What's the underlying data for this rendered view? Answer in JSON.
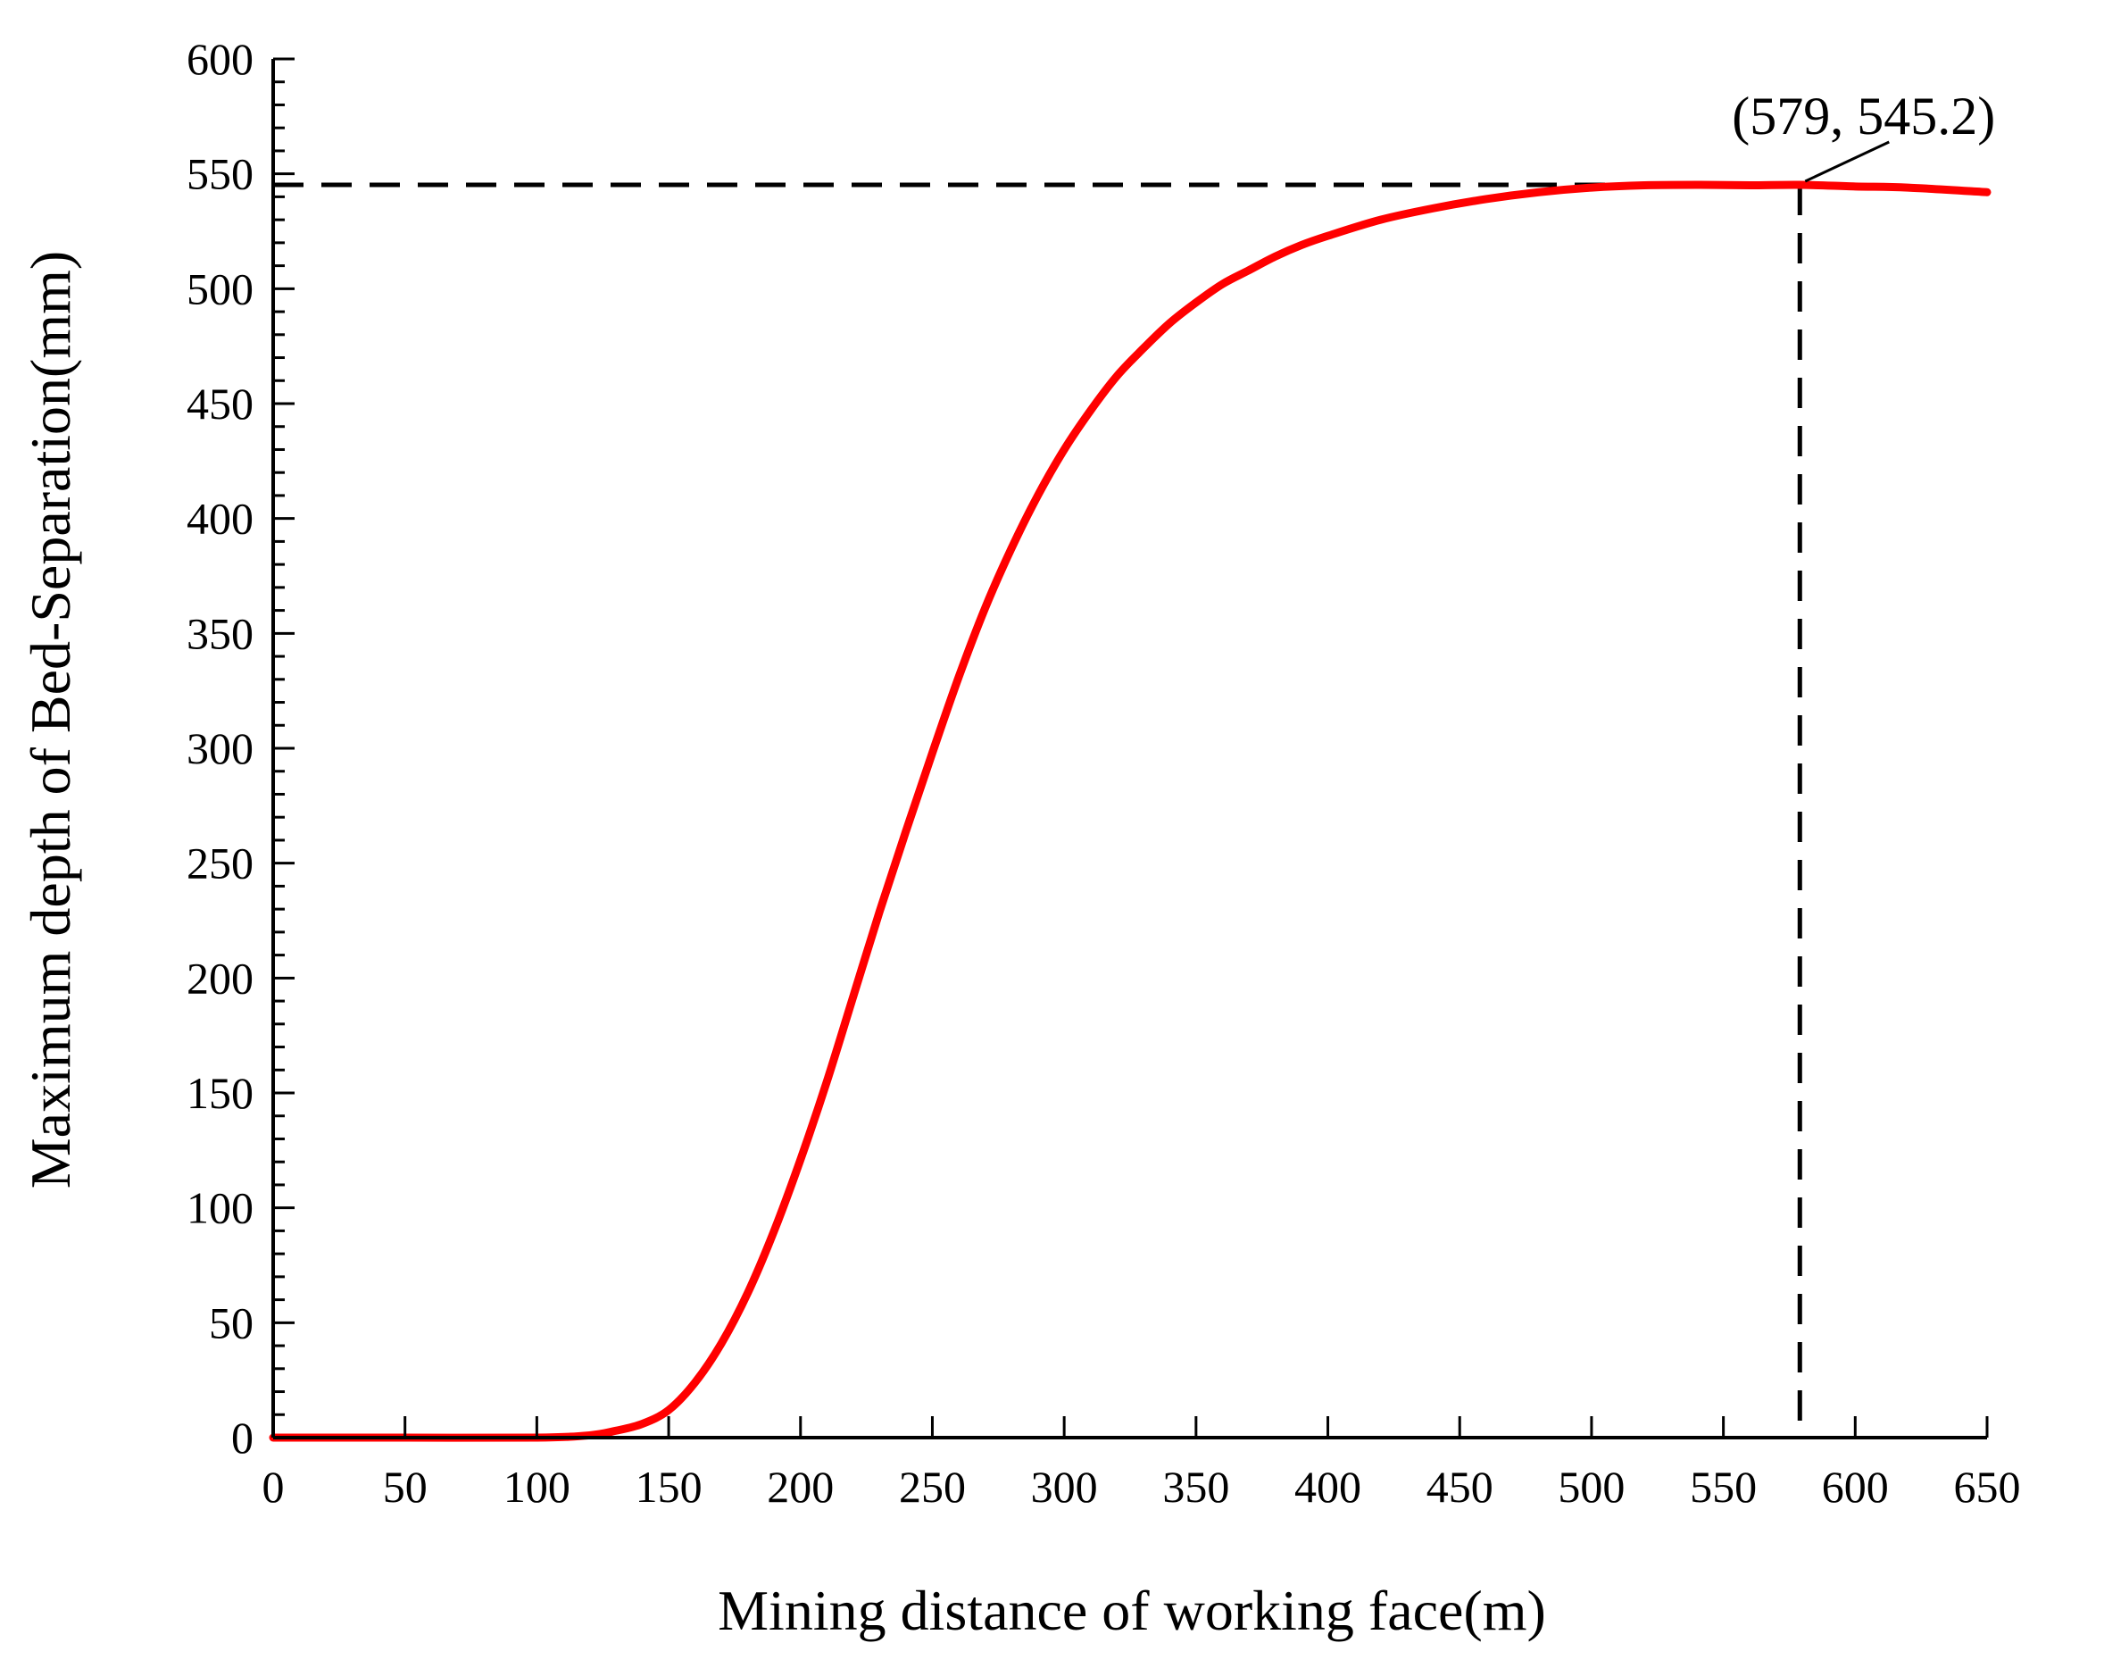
{
  "chart_data": {
    "type": "line",
    "title": "",
    "xlabel": "Mining distance of working face(m)",
    "ylabel": "Maximum depth of Bed-Separation(mm)",
    "xlim": [
      0,
      650
    ],
    "ylim": [
      0,
      600
    ],
    "x_ticks": [
      0,
      50,
      100,
      150,
      200,
      250,
      300,
      350,
      400,
      450,
      500,
      550,
      600,
      650
    ],
    "y_ticks": [
      0,
      50,
      100,
      150,
      200,
      250,
      300,
      350,
      400,
      450,
      500,
      550,
      600
    ],
    "grid": false,
    "series": [
      {
        "color": "#ff0000",
        "x": [
          0,
          50,
          100,
          120,
          130,
          140,
          150,
          160,
          170,
          180,
          190,
          200,
          210,
          220,
          230,
          240,
          250,
          260,
          270,
          280,
          290,
          300,
          310,
          320,
          330,
          340,
          350,
          360,
          370,
          380,
          390,
          400,
          420,
          440,
          460,
          480,
          500,
          520,
          540,
          560,
          579,
          600,
          620,
          650
        ],
        "y": [
          0,
          0,
          0,
          1,
          3,
          6,
          12,
          24,
          41,
          63,
          90,
          121,
          155,
          192,
          229,
          264,
          298,
          331,
          361,
          387,
          410,
          430,
          447,
          462,
          474,
          485,
          494,
          502,
          508,
          514,
          519,
          523,
          530,
          535,
          539,
          542,
          544,
          545,
          545.2,
          545,
          545.2,
          544.5,
          544,
          542
        ]
      }
    ],
    "annotation": {
      "label": "(579, 545.2)",
      "x": 579,
      "y": 545.2,
      "line_style": "dashed",
      "line_color": "#000000"
    }
  }
}
